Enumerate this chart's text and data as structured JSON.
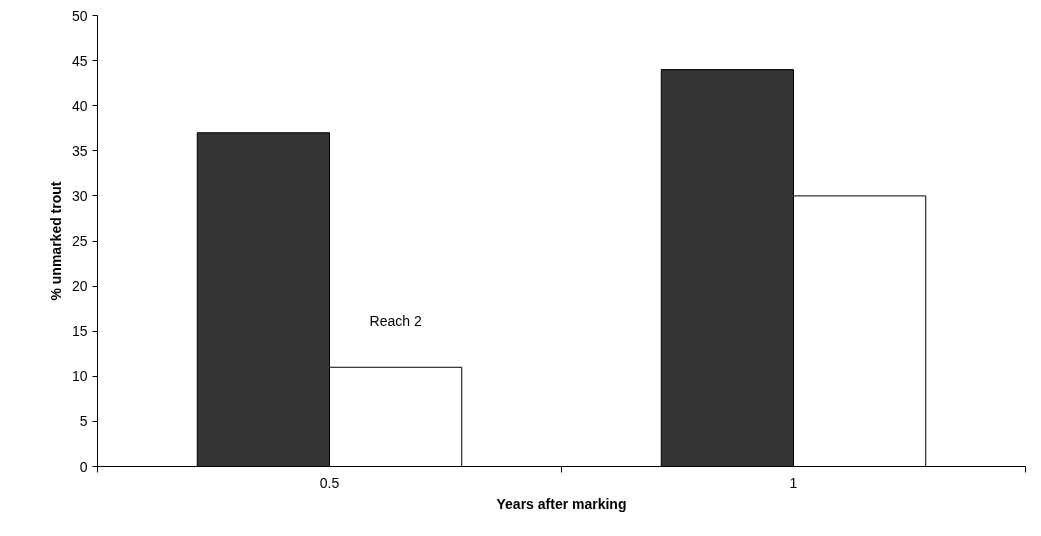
{
  "chart_data": {
    "type": "bar",
    "xlabel": "Years after marking",
    "ylabel": "% unmarked trout",
    "categories": [
      "0.5",
      "1"
    ],
    "series": [
      {
        "color": "#333333",
        "values": [
          37,
          44
        ]
      },
      {
        "name": "Reach 2",
        "color": "#ffffff",
        "values": [
          11,
          30
        ]
      }
    ],
    "ylim": [
      0,
      50
    ],
    "yticks": [
      0,
      5,
      10,
      15,
      20,
      25,
      30,
      35,
      40,
      45,
      50
    ],
    "grid": false
  }
}
